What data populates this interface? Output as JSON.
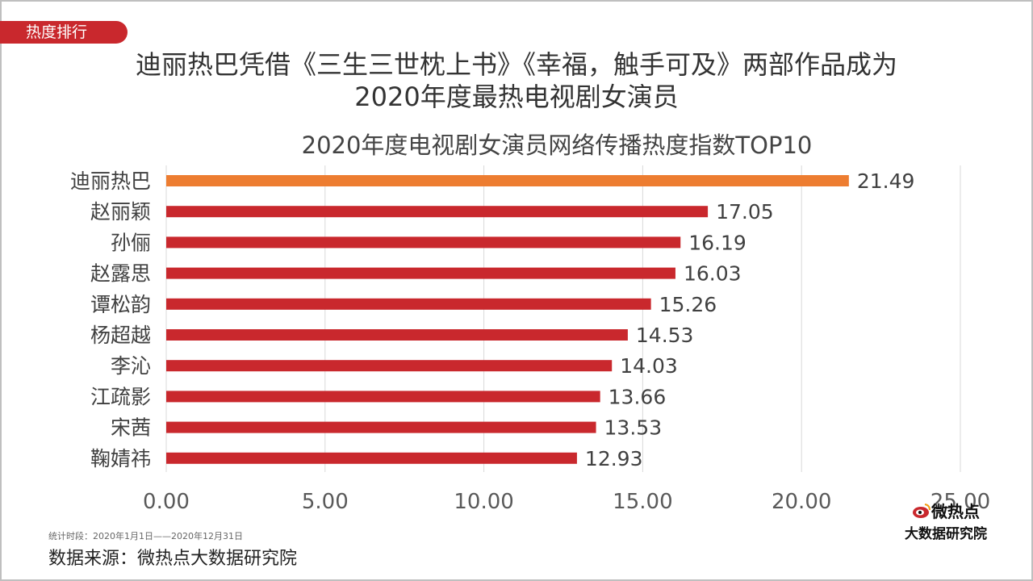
{
  "header": {
    "tag": "热度排行",
    "headline_line1": "迪丽热巴凭借《三生三世枕上书》《幸福，触手可及》两部作品成为",
    "headline_line2": "2020年度最热电视剧女演员"
  },
  "footer": {
    "period": "统计时段：2020年1月1日——2020年12月31日",
    "source": "数据来源：微热点大数据研究院",
    "brand_line1": "微热点",
    "brand_line2": "大数据研究院"
  },
  "chart_data": {
    "type": "bar",
    "orientation": "horizontal",
    "title": "2020年度电视剧女演员网络传播热度指数TOP10",
    "categories": [
      "迪丽热巴",
      "赵丽颖",
      "孙俪",
      "赵露思",
      "谭松韵",
      "杨超越",
      "李沁",
      "江疏影",
      "宋茜",
      "鞠婧祎"
    ],
    "values": [
      21.49,
      17.05,
      16.19,
      16.03,
      15.26,
      14.53,
      14.03,
      13.66,
      13.53,
      12.93
    ],
    "value_labels": [
      "21.49",
      "17.05",
      "16.19",
      "16.03",
      "15.26",
      "14.53",
      "14.03",
      "13.66",
      "13.53",
      "12.93"
    ],
    "xlim": [
      0,
      25
    ],
    "x_ticks": [
      "0.00",
      "5.00",
      "10.00",
      "15.00",
      "20.00",
      "25.00"
    ],
    "grid": true,
    "highlight_color": "#ed7d31",
    "bar_color": "#c9282d"
  }
}
